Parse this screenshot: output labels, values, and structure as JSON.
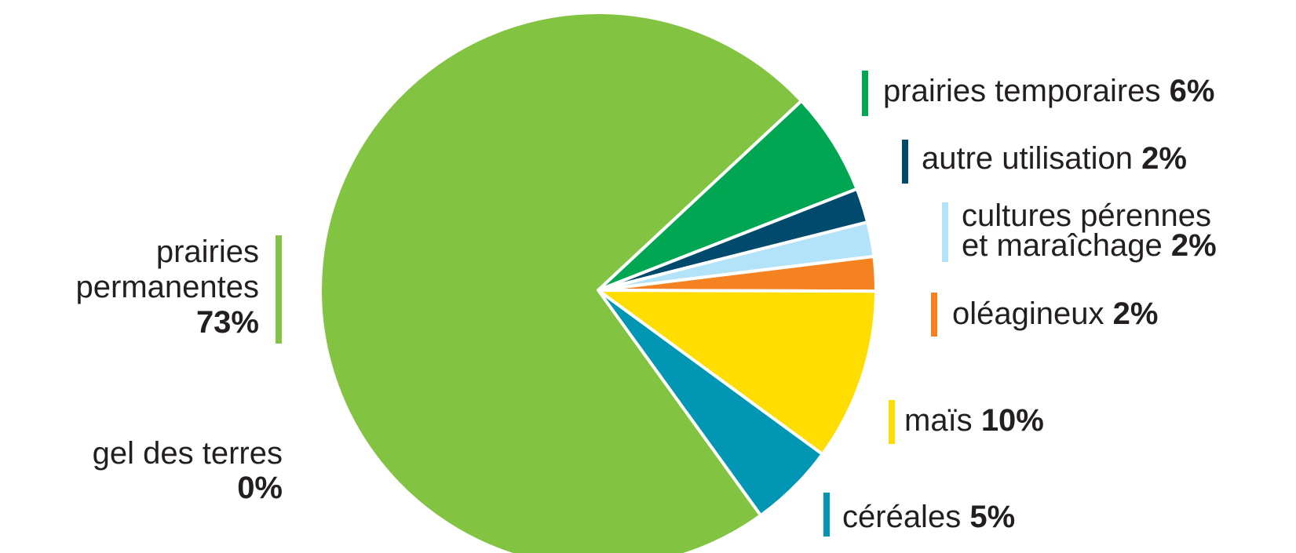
{
  "chart_data": {
    "type": "pie",
    "title": "",
    "slices": [
      {
        "label": "prairies temporaires",
        "value": 6,
        "display": "6%",
        "color": "#00a651"
      },
      {
        "label": "autre utilisation",
        "value": 2,
        "display": "2%",
        "color": "#004a6e"
      },
      {
        "label": "cultures pérennes et maraîchage",
        "value": 2,
        "display": "2%",
        "color": "#b3e3f8"
      },
      {
        "label": "oléagineux",
        "value": 2,
        "display": "2%",
        "color": "#f58220"
      },
      {
        "label": "maïs",
        "value": 10,
        "display": "10%",
        "color": "#ffdd00"
      },
      {
        "label": "céréales",
        "value": 5,
        "display": "5%",
        "color": "#0096b4"
      },
      {
        "label": "gel des terres",
        "value": 0,
        "display": "0%",
        "color": "#cccccc"
      },
      {
        "label": "prairies permanentes",
        "value": 73,
        "display": "73%",
        "color": "#82c341"
      }
    ]
  },
  "labels": {
    "prairies_temporaires": {
      "text": "prairies temporaires",
      "pct": "6%"
    },
    "autre_utilisation": {
      "text": "autre utilisation",
      "pct": "2%"
    },
    "cultures_perennes": {
      "line1": "cultures pérennes",
      "line2": "et maraîchage",
      "pct": "2%"
    },
    "oleagineux": {
      "text": "oléagineux",
      "pct": "2%"
    },
    "mais": {
      "text": "maïs",
      "pct": "10%"
    },
    "cereales": {
      "text": "céréales",
      "pct": "5%"
    },
    "prairies_permanentes": {
      "line1": "prairies",
      "line2": "permanentes",
      "pct": "73%"
    },
    "gel_des_terres": {
      "text": "gel des terres",
      "pct": "0%"
    }
  }
}
